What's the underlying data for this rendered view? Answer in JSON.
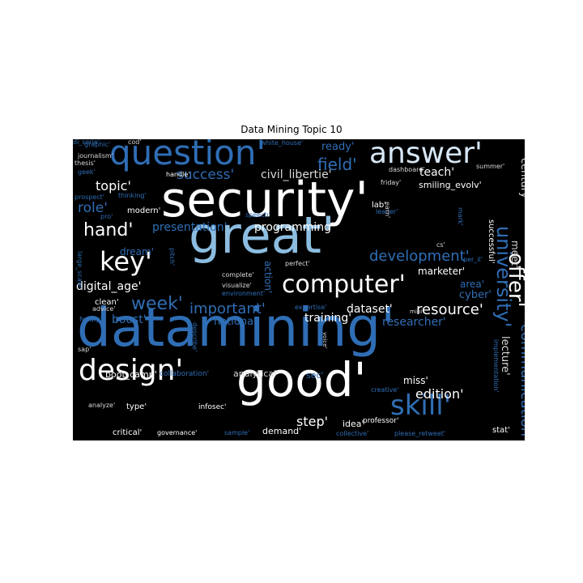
{
  "title": "Data Mining Topic 10",
  "palette": {
    "background": "#000000",
    "white": "#ffffff",
    "light_blue": "#8cbde0",
    "mid_blue": "#3a82c2",
    "dark_blue": "#1a4f8f",
    "gray": "#d9d9d9"
  },
  "words": [
    {
      "text": "security'",
      "size": 60,
      "color": "#ffffff"
    },
    {
      "text": "datamining'",
      "size": 66,
      "color": "#2f6eb5"
    },
    {
      "text": "great'",
      "size": 62,
      "color": "#8cbde0"
    },
    {
      "text": "good'",
      "size": 58,
      "color": "#ffffff"
    },
    {
      "text": "question'",
      "size": 42,
      "color": "#2f6eb5"
    },
    {
      "text": "answer'",
      "size": 36,
      "color": "#d6e6f4"
    },
    {
      "text": "design'",
      "size": 36,
      "color": "#ffffff"
    },
    {
      "text": "computer'",
      "size": 30,
      "color": "#ffffff"
    },
    {
      "text": "skill'",
      "size": 34,
      "color": "#2f6eb5"
    },
    {
      "text": "key'",
      "size": 32,
      "color": "#ffffff"
    },
    {
      "text": "university'",
      "size": 24,
      "color": "#2f6eb5"
    },
    {
      "text": "hand'",
      "size": 22,
      "color": "#ffffff"
    },
    {
      "text": "offer'",
      "size": 26,
      "color": "#ffffff"
    },
    {
      "text": "week'",
      "size": 22,
      "color": "#2f6eb5"
    },
    {
      "text": "communication'",
      "size": 18,
      "color": "#2f6eb5"
    },
    {
      "text": "development'",
      "size": 18,
      "color": "#2f6eb5"
    },
    {
      "text": "resource'",
      "size": 18,
      "color": "#ffffff"
    },
    {
      "text": "important'",
      "size": 18,
      "color": "#2f6eb5"
    },
    {
      "text": "field'",
      "size": 20,
      "color": "#2f6eb5"
    },
    {
      "text": "success'",
      "size": 17,
      "color": "#2f6eb5"
    },
    {
      "text": "topic'",
      "size": 16,
      "color": "#ffffff"
    },
    {
      "text": "role'",
      "size": 17,
      "color": "#2f6eb5"
    },
    {
      "text": "edition'",
      "size": 16,
      "color": "#ffffff"
    },
    {
      "text": "step'",
      "size": 16,
      "color": "#ffffff"
    },
    {
      "text": "presentation'",
      "size": 14,
      "color": "#2f6eb5"
    },
    {
      "text": "programming'",
      "size": 14,
      "color": "#ffffff"
    },
    {
      "text": "civil_libertie'",
      "size": 14,
      "color": "#d9d9d9"
    },
    {
      "text": "teach'",
      "size": 14,
      "color": "#ffffff"
    },
    {
      "text": "digital_age'",
      "size": 14,
      "color": "#ffffff"
    },
    {
      "text": "boost'",
      "size": 14,
      "color": "#2f6eb5"
    },
    {
      "text": "training'",
      "size": 14,
      "color": "#ffffff"
    },
    {
      "text": "researcher'",
      "size": 14,
      "color": "#2f6eb5"
    },
    {
      "text": "dataset'",
      "size": 14,
      "color": "#ffffff"
    },
    {
      "text": "cyber'",
      "size": 13,
      "color": "#2f6eb5"
    },
    {
      "text": "ready'",
      "size": 13,
      "color": "#2f6eb5"
    },
    {
      "text": "century'",
      "size": 13,
      "color": "#d9d9d9"
    },
    {
      "text": "lecture'",
      "size": 13,
      "color": "#d9d9d9"
    },
    {
      "text": "national'",
      "size": 13,
      "color": "#2f6eb5"
    },
    {
      "text": "marketer'",
      "size": 12,
      "color": "#ffffff"
    },
    {
      "text": "dream'",
      "size": 12,
      "color": "#2f6eb5"
    },
    {
      "text": "action'",
      "size": 12,
      "color": "#2f6eb5"
    },
    {
      "text": "meet'",
      "size": 12,
      "color": "#d9d9d9"
    },
    {
      "text": "area'",
      "size": 12,
      "color": "#2f6eb5"
    },
    {
      "text": "miss'",
      "size": 12,
      "color": "#ffffff"
    },
    {
      "text": "idea'",
      "size": 11,
      "color": "#ffffff"
    },
    {
      "text": "demand'",
      "size": 11,
      "color": "#ffffff"
    },
    {
      "text": "analytical'",
      "size": 11,
      "color": "#d9d9d9"
    },
    {
      "text": "sec'",
      "size": 11,
      "color": "#2f6eb5"
    },
    {
      "text": "boot_camp'",
      "size": 11,
      "color": "#ffffff"
    },
    {
      "text": "smiling_evolv'",
      "size": 11,
      "color": "#ffffff"
    },
    {
      "text": "clean'",
      "size": 10,
      "color": "#ffffff"
    },
    {
      "text": "modern'",
      "size": 10,
      "color": "#ffffff"
    },
    {
      "text": "successful'",
      "size": 10,
      "color": "#ffffff"
    },
    {
      "text": "lab'",
      "size": 10,
      "color": "#ffffff"
    },
    {
      "text": "type'",
      "size": 10,
      "color": "#ffffff"
    },
    {
      "text": "stat'",
      "size": 10,
      "color": "#ffffff"
    },
    {
      "text": "infosec'",
      "size": 9,
      "color": "#ffffff"
    },
    {
      "text": "professor'",
      "size": 9,
      "color": "#ffffff"
    },
    {
      "text": "critical'",
      "size": 10,
      "color": "#ffffff"
    },
    {
      "text": "collaboration'",
      "size": 9,
      "color": "#2f6eb5"
    },
    {
      "text": "governance'",
      "size": 8,
      "color": "#ffffff"
    },
    {
      "text": "sample'",
      "size": 8,
      "color": "#2f6eb5"
    },
    {
      "text": "collective'",
      "size": 8,
      "color": "#2f6eb5"
    },
    {
      "text": "please_retweet'",
      "size": 8,
      "color": "#2f6eb5"
    },
    {
      "text": "analyze'",
      "size": 8,
      "color": "#d9d9d9"
    },
    {
      "text": "creative'",
      "size": 8,
      "color": "#2f6eb5"
    },
    {
      "text": "implementation'",
      "size": 8,
      "color": "#2f6eb5"
    },
    {
      "text": "voice'",
      "size": 7,
      "color": "#d9d9d9"
    },
    {
      "text": "mini'",
      "size": 7,
      "color": "#d9d9d9"
    },
    {
      "text": "expertise'",
      "size": 8,
      "color": "#2f6eb5"
    },
    {
      "text": "environment'",
      "size": 8,
      "color": "#2f6eb5"
    },
    {
      "text": "visualize'",
      "size": 8,
      "color": "#d9d9d9"
    },
    {
      "text": "complete'",
      "size": 8,
      "color": "#d9d9d9"
    },
    {
      "text": "advice'",
      "size": 8,
      "color": "#d9d9d9"
    },
    {
      "text": "perfect'",
      "size": 8,
      "color": "#d9d9d9"
    },
    {
      "text": "pitch'",
      "size": 8,
      "color": "#2f6eb5"
    },
    {
      "text": "large_scale'",
      "size": 8,
      "color": "#2f6eb5"
    },
    {
      "text": "feedly'",
      "size": 8,
      "color": "#2f6eb5"
    },
    {
      "text": "sap'",
      "size": 8,
      "color": "#d9d9d9"
    },
    {
      "text": "pro'",
      "size": 8,
      "color": "#2f6eb5"
    },
    {
      "text": "thinking'",
      "size": 8,
      "color": "#2f6eb5"
    },
    {
      "text": "prospect'",
      "size": 8,
      "color": "#2f6eb5"
    },
    {
      "text": "geek'",
      "size": 8,
      "color": "#2f6eb5"
    },
    {
      "text": "handle'",
      "size": 8,
      "color": "#ffffff"
    },
    {
      "text": "journalism'",
      "size": 8,
      "color": "#d9d9d9"
    },
    {
      "text": "thesis'",
      "size": 8,
      "color": "#d9d9d9"
    },
    {
      "text": "graphic'",
      "size": 8,
      "color": "#2f6eb5"
    },
    {
      "text": "cod'",
      "size": 8,
      "color": "#d9d9d9"
    },
    {
      "text": "white_house'",
      "size": 8,
      "color": "#2f6eb5"
    },
    {
      "text": "dashboard'",
      "size": 8,
      "color": "#d9d9d9"
    },
    {
      "text": "summer'",
      "size": 8,
      "color": "#d9d9d9"
    },
    {
      "text": "friday'",
      "size": 8,
      "color": "#d9d9d9"
    },
    {
      "text": "leader'",
      "size": 8,
      "color": "#2f6eb5"
    },
    {
      "text": "earn'",
      "size": 8,
      "color": "#d9d9d9"
    },
    {
      "text": "speech'",
      "size": 8,
      "color": "#2f6eb5"
    },
    {
      "text": "per_il'",
      "size": 8,
      "color": "#2f6eb5"
    },
    {
      "text": "cs'",
      "size": 8,
      "color": "#d9d9d9"
    },
    {
      "text": "mark'",
      "size": 8,
      "color": "#2f6eb5"
    },
    {
      "text": "describe'",
      "size": 8,
      "color": "#2f6eb5"
    },
    {
      "text": "di_serie'",
      "size": 8,
      "color": "#2f6eb5"
    }
  ]
}
